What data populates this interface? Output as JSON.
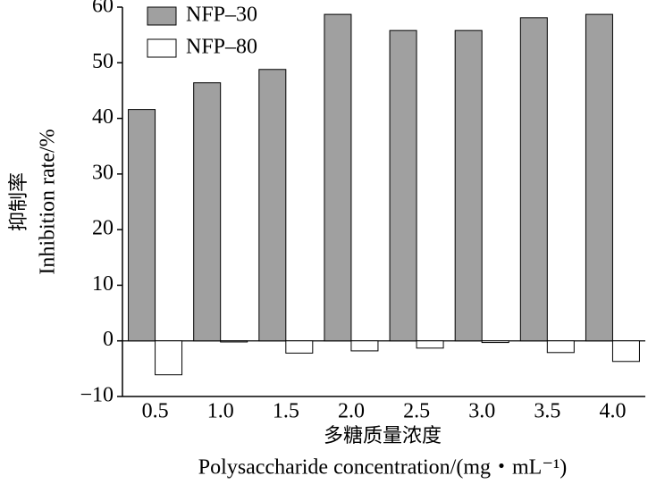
{
  "chart_data": {
    "type": "bar",
    "categories": [
      "0.5",
      "1.0",
      "1.5",
      "2.0",
      "2.5",
      "3.0",
      "3.5",
      "4.0"
    ],
    "series": [
      {
        "name": "NFP–30",
        "color": "#a0a0a0",
        "values": [
          41.6,
          46.4,
          48.8,
          58.7,
          55.8,
          55.8,
          58.1,
          58.7
        ]
      },
      {
        "name": "NFP–80",
        "color": "#ffffff",
        "values": [
          -6.1,
          -0.2,
          -2.2,
          -1.8,
          -1.3,
          -0.3,
          -2.1,
          -3.7
        ]
      }
    ],
    "ylim": [
      -10,
      60
    ],
    "yticks": [
      {
        "value": -10,
        "label": "−10"
      },
      0,
      10,
      20,
      30,
      40,
      50,
      60
    ],
    "y_label_cn": "抑制率",
    "y_label_en": "Inhibition rate/%",
    "x_label_cn": "多糖质量浓度",
    "x_label_en": "Polysaccharide concentration/(mg・mL⁻¹)",
    "legend": "upper left"
  }
}
